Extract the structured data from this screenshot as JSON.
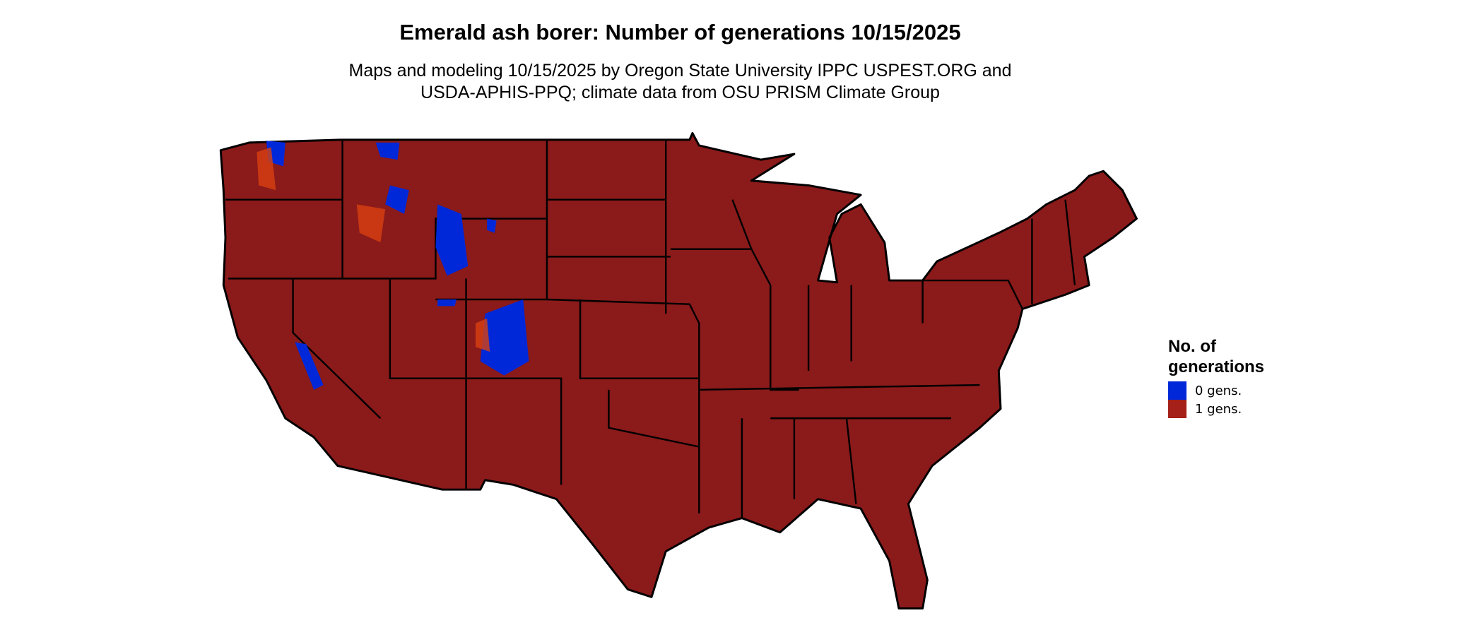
{
  "chart_data": {
    "type": "map",
    "title": "Emerald ash borer: Number of generations 10/15/2025",
    "subtitle_lines": [
      "Maps and modeling 10/15/2025 by Oregon State University IPPC USPEST.ORG and",
      "USDA-APHIS-PPQ; climate data from OSU PRISM Climate Group"
    ],
    "region": "Contiguous United States",
    "legend": {
      "title_lines": [
        "No. of",
        "generations"
      ],
      "placement": "right",
      "entries": [
        {
          "label": "0 gens.",
          "color": "#0028d8"
        },
        {
          "label": "1 gens.",
          "color": "#a52018"
        }
      ]
    },
    "map_fill_color": "#8b1a1a",
    "border_color": "#000000"
  }
}
